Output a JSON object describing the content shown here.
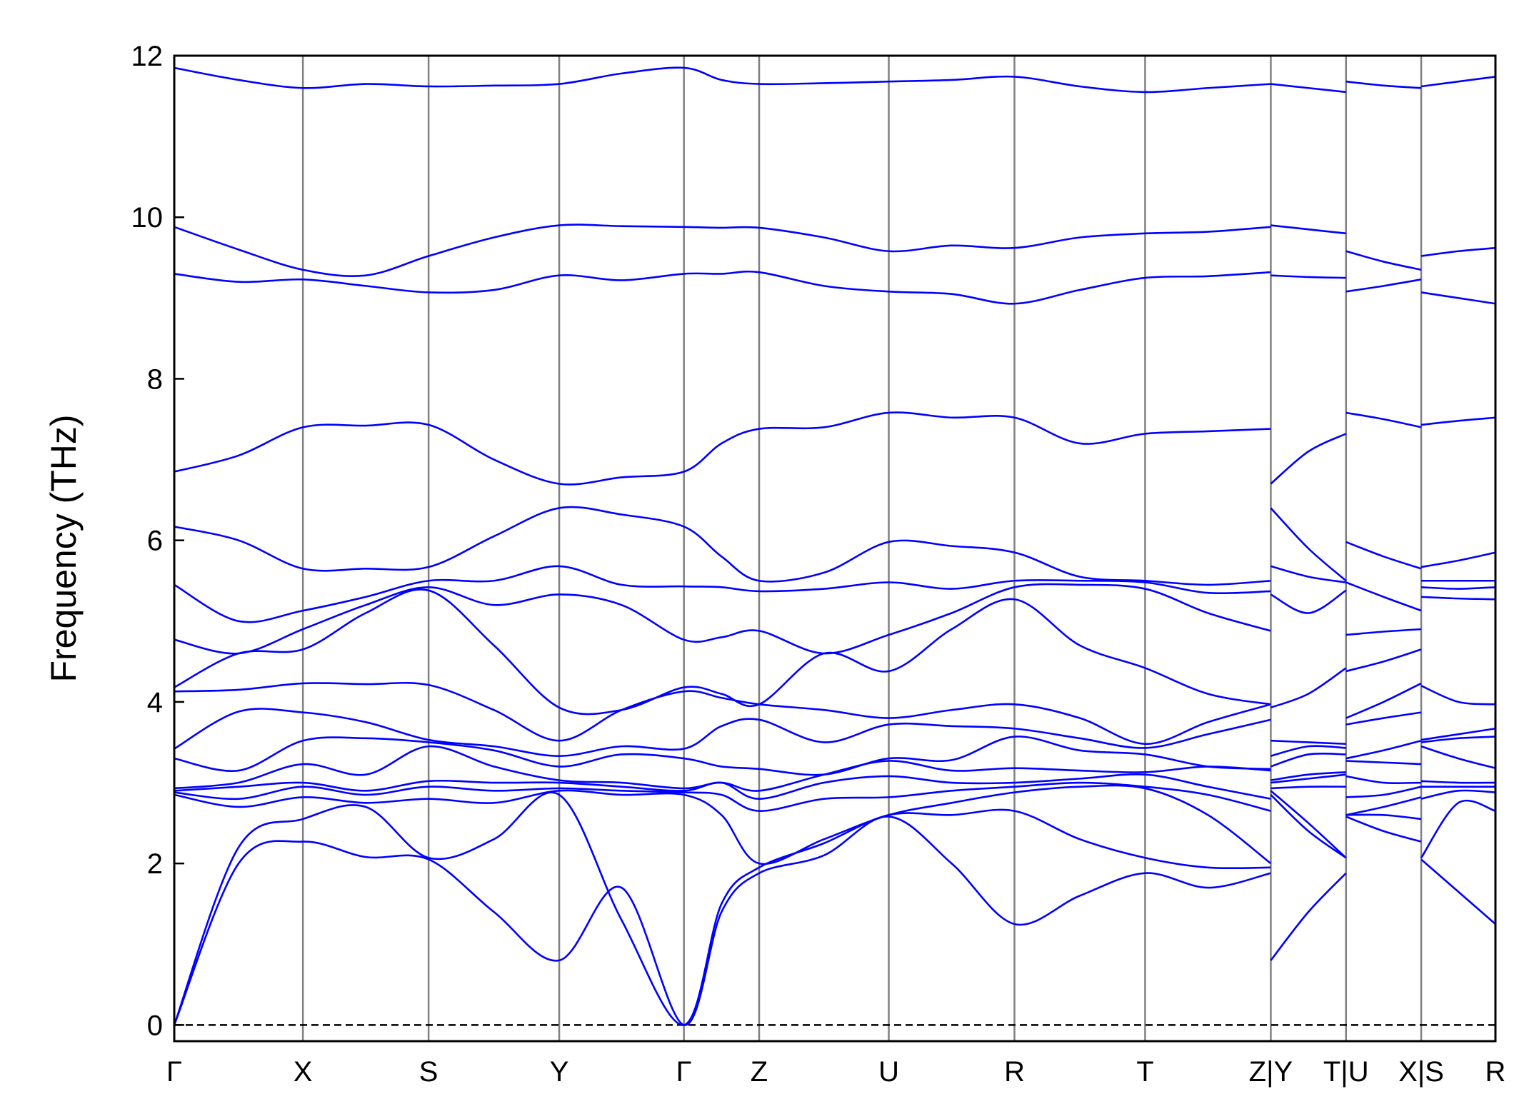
{
  "chart_data": {
    "type": "line",
    "ylabel": "Frequency (THz)",
    "color": "#0000ff",
    "zero_line": 0,
    "ylim": [
      -0.2,
      12
    ],
    "yticks": [
      0,
      2,
      4,
      6,
      8,
      10,
      12
    ],
    "xlim": [
      0,
      13.35
    ],
    "xticks": [
      {
        "value": 0,
        "label": "Γ"
      },
      {
        "value": 1.3,
        "label": "X"
      },
      {
        "value": 2.57,
        "label": "S"
      },
      {
        "value": 3.89,
        "label": "Y"
      },
      {
        "value": 5.15,
        "label": "Γ"
      },
      {
        "value": 5.91,
        "label": "Z"
      },
      {
        "value": 7.22,
        "label": "U"
      },
      {
        "value": 8.49,
        "label": "R"
      },
      {
        "value": 9.81,
        "label": "T"
      },
      {
        "value": 11.08,
        "label": "Z|Y"
      },
      {
        "value": 11.84,
        "label": "T|U"
      },
      {
        "value": 12.6,
        "label": "X|S"
      },
      {
        "value": 13.35,
        "label": "R"
      }
    ],
    "x": [
      0,
      0.65,
      1.3,
      1.935,
      2.57,
      3.23,
      3.89,
      4.52,
      5.15,
      5.53,
      5.91,
      6.565,
      7.22,
      7.855,
      8.49,
      9.15,
      9.81,
      10.445,
      11.08,
      11.08,
      11.08,
      11.46,
      11.84,
      11.84,
      11.84,
      12.22,
      12.6,
      12.6,
      12.6,
      12.975,
      13.35
    ],
    "series": [
      {
        "values": [
          11.85,
          11.7,
          11.6,
          11.65,
          11.62,
          11.63,
          11.65,
          11.78,
          11.85,
          11.7,
          11.65,
          11.66,
          11.68,
          11.7,
          11.74,
          11.62,
          11.55,
          11.6,
          11.65,
          null,
          11.65,
          11.6,
          11.55,
          null,
          11.68,
          11.63,
          11.6,
          null,
          11.62,
          11.68,
          11.74
        ]
      },
      {
        "values": [
          9.88,
          9.6,
          9.35,
          9.28,
          9.52,
          9.75,
          9.9,
          9.89,
          9.88,
          9.87,
          9.87,
          9.75,
          9.58,
          9.65,
          9.62,
          9.75,
          9.8,
          9.82,
          9.88,
          null,
          9.9,
          9.85,
          9.8,
          null,
          9.58,
          9.45,
          9.35,
          null,
          9.52,
          9.58,
          9.62
        ]
      },
      {
        "values": [
          9.3,
          9.2,
          9.23,
          9.15,
          9.07,
          9.1,
          9.28,
          9.22,
          9.3,
          9.3,
          9.32,
          9.15,
          9.08,
          9.05,
          8.93,
          9.1,
          9.25,
          9.27,
          9.32,
          null,
          9.28,
          9.26,
          9.25,
          null,
          9.08,
          9.15,
          9.23,
          null,
          9.07,
          9.0,
          8.93
        ]
      },
      {
        "values": [
          6.85,
          7.05,
          7.4,
          7.42,
          7.43,
          7.0,
          6.7,
          6.78,
          6.85,
          7.2,
          7.38,
          7.4,
          7.58,
          7.52,
          7.52,
          7.2,
          7.32,
          7.35,
          7.38,
          null,
          6.7,
          7.1,
          7.32,
          null,
          7.58,
          7.5,
          7.4,
          null,
          7.43,
          7.48,
          7.52
        ]
      },
      {
        "values": [
          6.17,
          6.0,
          5.65,
          5.65,
          5.67,
          6.05,
          6.4,
          6.32,
          6.17,
          5.8,
          5.5,
          5.6,
          5.98,
          5.93,
          5.85,
          5.55,
          5.5,
          5.45,
          5.5,
          null,
          6.4,
          5.9,
          5.5,
          null,
          5.98,
          5.8,
          5.65,
          null,
          5.67,
          5.75,
          5.85
        ]
      },
      {
        "values": [
          5.45,
          5.0,
          5.13,
          5.3,
          5.5,
          5.5,
          5.68,
          5.45,
          5.43,
          5.42,
          5.37,
          5.4,
          5.48,
          5.4,
          5.5,
          5.5,
          5.48,
          5.35,
          5.37,
          null,
          5.68,
          5.55,
          5.48,
          null,
          5.48,
          5.3,
          5.13,
          null,
          5.5,
          5.5,
          5.5
        ]
      },
      {
        "values": [
          4.77,
          4.6,
          4.9,
          5.2,
          5.42,
          5.2,
          5.33,
          5.2,
          4.77,
          4.8,
          4.88,
          4.6,
          4.83,
          5.1,
          5.42,
          5.45,
          5.4,
          5.1,
          4.88,
          null,
          5.33,
          5.1,
          5.38,
          null,
          4.83,
          4.87,
          4.9,
          null,
          5.42,
          5.4,
          5.42
        ]
      },
      {
        "values": [
          4.18,
          4.6,
          4.65,
          5.1,
          5.38,
          4.7,
          3.93,
          3.9,
          4.18,
          4.1,
          3.97,
          4.6,
          4.38,
          4.9,
          5.27,
          4.7,
          4.42,
          4.1,
          3.97,
          null,
          3.93,
          4.1,
          4.42,
          null,
          4.38,
          4.5,
          4.65,
          null,
          5.3,
          5.28,
          5.27
        ]
      },
      {
        "values": [
          4.13,
          4.15,
          4.23,
          4.22,
          4.21,
          3.9,
          3.52,
          3.9,
          4.13,
          4.05,
          3.97,
          3.9,
          3.8,
          3.9,
          3.97,
          3.8,
          3.48,
          3.75,
          3.97,
          null,
          3.52,
          3.5,
          3.48,
          null,
          3.8,
          4.0,
          4.23,
          null,
          4.2,
          4.0,
          3.97
        ]
      },
      {
        "values": [
          3.42,
          3.88,
          3.87,
          3.75,
          3.53,
          3.45,
          3.33,
          3.45,
          3.42,
          3.7,
          3.78,
          3.5,
          3.72,
          3.7,
          3.67,
          3.55,
          3.43,
          3.6,
          3.78,
          null,
          3.33,
          3.45,
          3.43,
          null,
          3.72,
          3.8,
          3.87,
          null,
          3.53,
          3.6,
          3.67
        ]
      },
      {
        "values": [
          3.3,
          3.15,
          3.52,
          3.55,
          3.5,
          3.4,
          3.2,
          3.35,
          3.3,
          3.2,
          3.17,
          3.1,
          3.3,
          3.28,
          3.57,
          3.4,
          3.35,
          3.2,
          3.17,
          null,
          3.2,
          3.35,
          3.35,
          null,
          3.3,
          3.4,
          3.52,
          null,
          3.5,
          3.55,
          3.57
        ]
      },
      {
        "values": [
          2.93,
          3.0,
          3.23,
          3.1,
          3.45,
          3.2,
          3.03,
          3.0,
          2.93,
          3.0,
          2.9,
          3.1,
          3.27,
          3.15,
          3.18,
          3.15,
          3.13,
          3.2,
          3.15,
          null,
          3.03,
          3.1,
          3.13,
          null,
          3.27,
          3.25,
          3.23,
          null,
          3.45,
          3.3,
          3.18
        ]
      },
      {
        "values": [
          2.9,
          2.95,
          3.0,
          2.9,
          3.02,
          3.0,
          3.0,
          2.95,
          2.9,
          3.0,
          2.8,
          3.0,
          3.08,
          3.0,
          3.0,
          3.05,
          3.1,
          2.95,
          2.8,
          null,
          3.0,
          3.05,
          3.1,
          null,
          3.08,
          3.0,
          3.0,
          null,
          3.02,
          3.0,
          3.0
        ]
      },
      {
        "values": [
          2.88,
          2.8,
          2.95,
          2.85,
          2.95,
          2.9,
          2.93,
          2.9,
          2.88,
          2.85,
          2.65,
          2.8,
          2.82,
          2.9,
          2.95,
          3.0,
          2.95,
          2.85,
          2.65,
          null,
          2.93,
          2.95,
          2.95,
          null,
          2.82,
          2.85,
          2.95,
          null,
          2.95,
          2.95,
          2.95
        ]
      },
      {
        "values": [
          2.85,
          2.7,
          2.82,
          2.75,
          2.8,
          2.75,
          2.9,
          2.85,
          2.85,
          2.6,
          2.0,
          2.3,
          2.6,
          2.75,
          2.88,
          2.95,
          2.93,
          2.6,
          2.0,
          null,
          2.9,
          2.5,
          2.07,
          null,
          2.6,
          2.7,
          2.82,
          null,
          2.8,
          2.9,
          2.88
        ]
      },
      {
        "values": [
          0,
          2.2,
          2.55,
          2.7,
          2.07,
          2.3,
          2.85,
          1.3,
          0,
          1.5,
          1.95,
          2.25,
          2.6,
          2.6,
          2.65,
          2.3,
          2.07,
          1.95,
          1.95,
          null,
          2.85,
          2.4,
          2.07,
          null,
          2.6,
          2.6,
          2.55,
          null,
          2.07,
          2.75,
          2.65
        ]
      },
      {
        "values": [
          0,
          2.0,
          2.27,
          2.08,
          2.05,
          1.4,
          0.8,
          1.7,
          0,
          1.4,
          1.88,
          2.1,
          2.58,
          2.0,
          1.25,
          1.6,
          1.88,
          1.7,
          1.88,
          null,
          0.8,
          1.4,
          1.88,
          null,
          2.58,
          2.4,
          2.27,
          null,
          2.05,
          1.65,
          1.25
        ]
      }
    ]
  }
}
